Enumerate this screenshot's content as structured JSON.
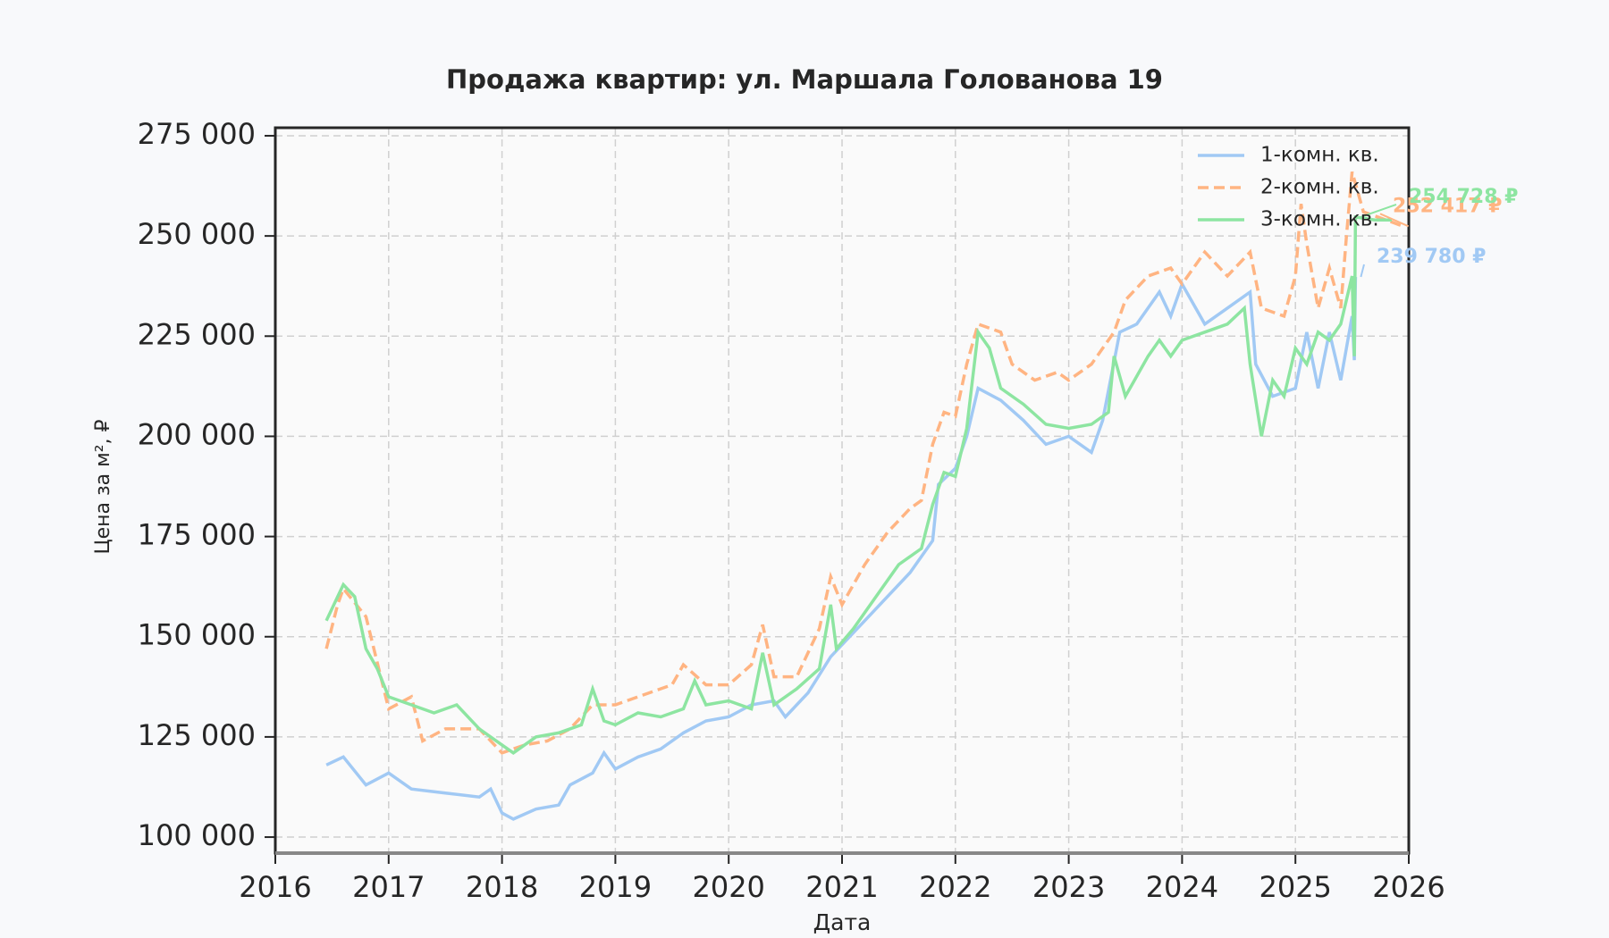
{
  "chart_data": {
    "type": "line",
    "title": "Продажа квартир: ул. Маршала Голованова 19",
    "x_label": "Дата",
    "y_label": "Цена за м², ₽",
    "xlim": [
      2016,
      2026
    ],
    "xticks": [
      2016,
      2017,
      2018,
      2019,
      2020,
      2021,
      2022,
      2023,
      2024,
      2025,
      2026
    ],
    "ylim": [
      96000,
      277000
    ],
    "yticks": [
      {
        "value": 100000,
        "label": "100 000"
      },
      {
        "value": 125000,
        "label": "125 000"
      },
      {
        "value": 150000,
        "label": "150 000"
      },
      {
        "value": 175000,
        "label": "175 000"
      },
      {
        "value": 200000,
        "label": "200 000"
      },
      {
        "value": 225000,
        "label": "225 000"
      },
      {
        "value": 250000,
        "label": "250 000"
      },
      {
        "value": 275000,
        "label": "275 000"
      }
    ],
    "grid": true,
    "legend": "upper right",
    "series": [
      {
        "name": "1-комн. кв.",
        "color": "#a1c9f4",
        "dash": "solid",
        "x": [
          2016.45,
          2016.6,
          2016.8,
          2017.0,
          2017.2,
          2017.5,
          2017.8,
          2017.9,
          2018.0,
          2018.1,
          2018.3,
          2018.5,
          2018.6,
          2018.8,
          2018.9,
          2019.0,
          2019.2,
          2019.4,
          2019.6,
          2019.8,
          2020.0,
          2020.2,
          2020.4,
          2020.5,
          2020.7,
          2020.9,
          2021.0,
          2021.2,
          2021.4,
          2021.6,
          2021.8,
          2021.85,
          2022.0,
          2022.1,
          2022.2,
          2022.4,
          2022.6,
          2022.8,
          2023.0,
          2023.2,
          2023.3,
          2023.45,
          2023.6,
          2023.8,
          2023.9,
          2024.0,
          2024.2,
          2024.4,
          2024.6,
          2024.65,
          2024.8,
          2025.0,
          2025.1,
          2025.2,
          2025.3,
          2025.4,
          2025.5,
          2025.52,
          2025.53
        ],
        "values": [
          118000,
          120000,
          113000,
          116000,
          112000,
          111000,
          110000,
          112000,
          106000,
          104500,
          107000,
          108000,
          113000,
          116000,
          121000,
          117000,
          120000,
          122000,
          126000,
          129000,
          130000,
          133000,
          134000,
          130000,
          136000,
          145000,
          148000,
          154000,
          160000,
          166000,
          174000,
          188000,
          192000,
          200000,
          212000,
          209000,
          204000,
          198000,
          200000,
          196000,
          204000,
          226000,
          228000,
          236000,
          230000,
          238000,
          228000,
          232000,
          236000,
          218000,
          210000,
          212000,
          226000,
          212000,
          226000,
          214000,
          230000,
          219000,
          239780
        ]
      },
      {
        "name": "2-комн. кв.",
        "color": "#ffb482",
        "dash": "dashed",
        "x": [
          2016.45,
          2016.55,
          2016.6,
          2016.8,
          2017.0,
          2017.2,
          2017.3,
          2017.5,
          2017.8,
          2018.0,
          2018.2,
          2018.4,
          2018.6,
          2018.8,
          2019.0,
          2019.2,
          2019.5,
          2019.6,
          2019.8,
          2020.0,
          2020.2,
          2020.3,
          2020.4,
          2020.6,
          2020.8,
          2020.9,
          2021.0,
          2021.2,
          2021.4,
          2021.6,
          2021.7,
          2021.8,
          2021.9,
          2022.0,
          2022.1,
          2022.2,
          2022.4,
          2022.5,
          2022.7,
          2022.9,
          2023.0,
          2023.2,
          2023.4,
          2023.5,
          2023.7,
          2023.9,
          2024.0,
          2024.2,
          2024.4,
          2024.6,
          2024.7,
          2024.9,
          2025.0,
          2025.05,
          2025.1,
          2025.2,
          2025.3,
          2025.4,
          2025.45,
          2025.5,
          2025.6,
          2025.8,
          2025.95
        ],
        "values": [
          147000,
          158000,
          162000,
          155000,
          132000,
          135000,
          124000,
          127000,
          127000,
          121000,
          123000,
          124000,
          127000,
          133000,
          133000,
          135000,
          138000,
          143000,
          138000,
          138000,
          143000,
          153000,
          140000,
          140000,
          152000,
          165000,
          158000,
          168000,
          176000,
          182000,
          184000,
          198000,
          206000,
          205000,
          218000,
          228000,
          226000,
          218000,
          214000,
          216000,
          214000,
          218000,
          226000,
          234000,
          240000,
          242000,
          238000,
          246000,
          240000,
          246000,
          232000,
          230000,
          240000,
          258000,
          248000,
          232000,
          242000,
          232000,
          250000,
          266000,
          256000,
          254000,
          252417
        ]
      },
      {
        "name": "3-комн. кв.",
        "color": "#8de5a1",
        "dash": "solid",
        "x": [
          2016.45,
          2016.6,
          2016.7,
          2016.8,
          2016.9,
          2017.0,
          2017.2,
          2017.4,
          2017.6,
          2017.8,
          2018.0,
          2018.1,
          2018.3,
          2018.5,
          2018.7,
          2018.8,
          2018.9,
          2019.0,
          2019.2,
          2019.4,
          2019.6,
          2019.7,
          2019.8,
          2020.0,
          2020.2,
          2020.3,
          2020.4,
          2020.6,
          2020.8,
          2020.9,
          2020.95,
          2021.1,
          2021.3,
          2021.5,
          2021.7,
          2021.8,
          2021.9,
          2022.0,
          2022.1,
          2022.2,
          2022.3,
          2022.4,
          2022.6,
          2022.8,
          2023.0,
          2023.2,
          2023.35,
          2023.4,
          2023.5,
          2023.7,
          2023.8,
          2023.9,
          2024.0,
          2024.2,
          2024.4,
          2024.55,
          2024.6,
          2024.7,
          2024.8,
          2024.9,
          2025.0,
          2025.1,
          2025.2,
          2025.3,
          2025.4,
          2025.5,
          2025.52,
          2025.53,
          2025.7,
          2025.85
        ],
        "values": [
          154000,
          163000,
          160000,
          147000,
          142000,
          135000,
          133000,
          131000,
          133000,
          127000,
          123000,
          121000,
          125000,
          126000,
          128000,
          137000,
          129000,
          128000,
          131000,
          130000,
          132000,
          139000,
          133000,
          134000,
          132000,
          146000,
          133000,
          137000,
          142000,
          158000,
          147000,
          152000,
          160000,
          168000,
          172000,
          183000,
          191000,
          190000,
          202000,
          226000,
          222000,
          212000,
          208000,
          203000,
          202000,
          203000,
          206000,
          220000,
          210000,
          220000,
          224000,
          220000,
          224000,
          226000,
          228000,
          232000,
          218000,
          200000,
          214000,
          210000,
          222000,
          218000,
          226000,
          224000,
          228000,
          240000,
          220000,
          254728,
          254000,
          254000
        ]
      }
    ],
    "annotations": [
      {
        "text": "239 780 ₽",
        "x": 2025.53,
        "value": 239780,
        "color": "#a1c9f4"
      },
      {
        "text": "252 417 ₽",
        "x": 2025.95,
        "value": 252417,
        "color": "#ffb482"
      },
      {
        "text": "254 728 ₽",
        "x": 2025.53,
        "value": 254728,
        "color": "#8de5a1"
      }
    ]
  }
}
